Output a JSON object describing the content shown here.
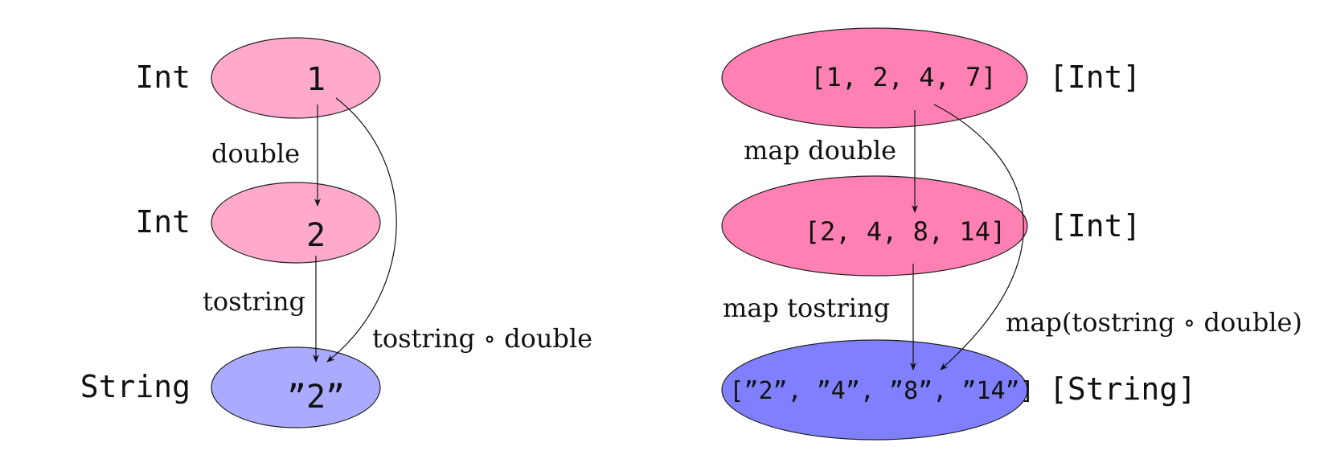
{
  "colors": {
    "pink_light": "#ffaacc",
    "pink_dark": "#ff80b3",
    "blue_light": "#aaaaff",
    "blue_dark": "#8080ff"
  },
  "left": {
    "types": {
      "int1": "Int",
      "int2": "Int",
      "string": "String"
    },
    "values": {
      "one": "1",
      "two": "2",
      "str_two": "”2”"
    },
    "arrows": {
      "double": "double",
      "tostring": "tostring",
      "composed": "tostring ∘ double"
    }
  },
  "right": {
    "types": {
      "int1": "[Int]",
      "int2": "[Int]",
      "string": "[String]"
    },
    "values": {
      "list1": "[1, 2, 4, 7]",
      "list2": "[2, 4, 8, 14]",
      "list3": "[”2”, ”4”, ”8”, ”14”]"
    },
    "arrows": {
      "map_double": "map double",
      "map_tostring": "map tostring",
      "map_composed": "map(tostring ∘ double)"
    }
  }
}
